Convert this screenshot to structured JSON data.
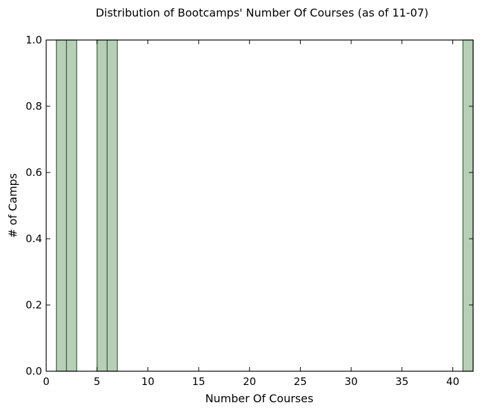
{
  "chart_data": {
    "type": "bar",
    "title": "Distribution of Bootcamps' Number Of Courses (as of 11-07)",
    "xlabel": "Number Of Courses",
    "ylabel": "# of Camps",
    "xlim": [
      0,
      42
    ],
    "ylim": [
      0,
      1.0
    ],
    "xticks": [
      "0",
      "5",
      "10",
      "15",
      "20",
      "25",
      "30",
      "35",
      "40"
    ],
    "yticks": [
      "0.0",
      "0.2",
      "0.4",
      "0.6",
      "0.8",
      "1.0"
    ],
    "grid": false,
    "bar_color": "#b6cfb6",
    "bar_edge_color": "#3f5e3f",
    "bins": [
      {
        "x0": 1,
        "x1": 2,
        "count": 1
      },
      {
        "x0": 2,
        "x1": 3,
        "count": 1
      },
      {
        "x0": 5,
        "x1": 6,
        "count": 1
      },
      {
        "x0": 6,
        "x1": 7,
        "count": 1
      },
      {
        "x0": 41,
        "x1": 42,
        "count": 1
      }
    ]
  }
}
